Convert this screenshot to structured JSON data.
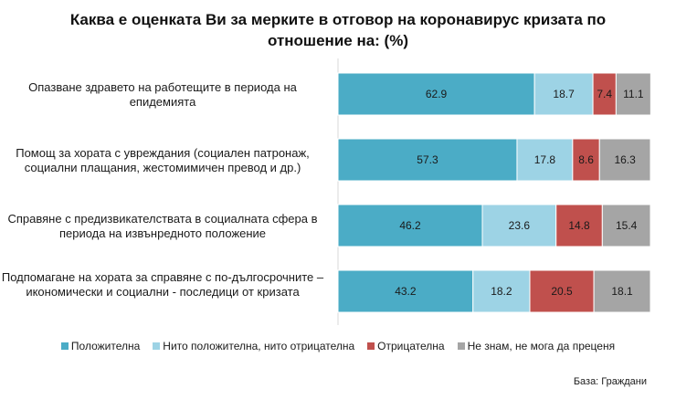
{
  "chart_data": {
    "type": "bar",
    "orientation": "horizontal",
    "stacked": true,
    "title": "Каква е оценката Ви за мерките в отговор на коронавирус кризата по отношение на: (%)",
    "categories": [
      "Опазване здравето на работещите в периода на епидемията",
      "Помощ за хората с увреждания (социален патронаж, социални плащания, жестомимичен превод и др.)",
      "Справяне с предизвикателствата в социалната сфера в периода на извънредното положение",
      "Подпомагане на хората за справяне с по-дългосрочните – икономически и социални - последици от кризата"
    ],
    "series": [
      {
        "name": "Положителна",
        "color": "#4bacc6",
        "values": [
          62.9,
          57.3,
          46.2,
          43.2
        ]
      },
      {
        "name": "Нито положителна, нито отрицателна",
        "color": "#9dd3e5",
        "values": [
          18.7,
          17.8,
          23.6,
          18.2
        ]
      },
      {
        "name": "Отрицателна",
        "color": "#c0504d",
        "values": [
          7.4,
          8.6,
          14.8,
          20.5
        ]
      },
      {
        "name": "Не знам, не мога да преценя",
        "color": "#a5a5a5",
        "values": [
          11.1,
          16.3,
          15.4,
          18.1
        ]
      }
    ],
    "xlim": [
      0,
      100
    ],
    "grid": false,
    "legend": "bottom",
    "footnote": "База: Граждани"
  }
}
